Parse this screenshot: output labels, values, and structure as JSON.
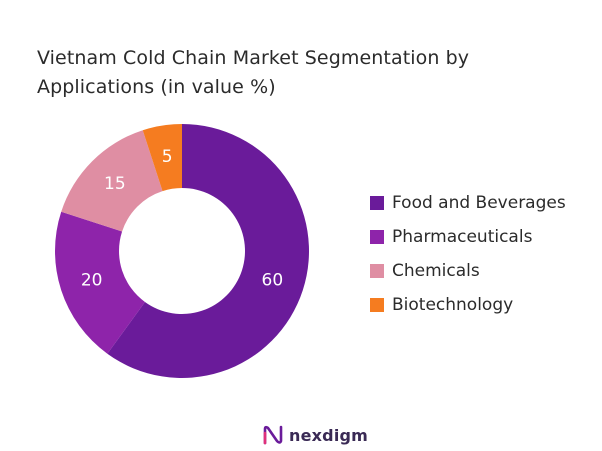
{
  "chart_data": {
    "type": "pie",
    "title_lines": [
      "Vietnam Cold Chain Market Segmentation by",
      "Applications (in value %)"
    ],
    "categories": [
      "Food and Beverages",
      "Pharmaceuticals",
      "Chemicals",
      "Biotechnology"
    ],
    "values": [
      60,
      20,
      15,
      5
    ],
    "colors": [
      "#6a1b9a",
      "#8e24aa",
      "#df8ea3",
      "#f57c20"
    ],
    "donut": true,
    "legend_position": "right"
  },
  "brand": {
    "name": "nexdigm"
  }
}
